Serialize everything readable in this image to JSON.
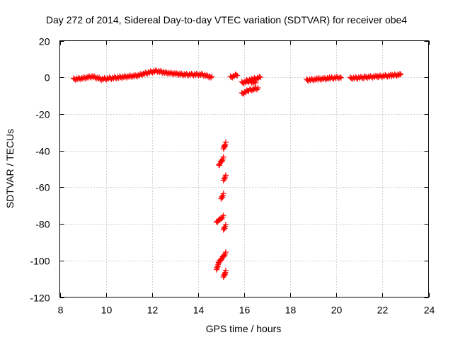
{
  "chart_data": {
    "type": "scatter",
    "title": "Day 272 of 2014, Sidereal Day-to-day VTEC variation (SDTVAR) for receiver obe4",
    "xlabel": "GPS time / hours",
    "ylabel": "SDTVAR / TECUs",
    "xlim": [
      8,
      24
    ],
    "ylim": [
      -120,
      20
    ],
    "xticks": [
      8,
      10,
      12,
      14,
      16,
      18,
      20,
      22,
      24
    ],
    "yticks": [
      20,
      0,
      -20,
      -40,
      -60,
      -80,
      -100,
      -120
    ],
    "grid": true,
    "series": [
      {
        "name": "SDTVAR",
        "color": "#ff0000",
        "segments": [
          [
            [
              8.6,
              -1
            ],
            [
              9.0,
              -0.5
            ],
            [
              9.4,
              0.5
            ],
            [
              9.8,
              -1
            ],
            [
              10.2,
              -0.5
            ],
            [
              10.6,
              0
            ],
            [
              11.0,
              0.5
            ],
            [
              11.4,
              1
            ],
            [
              11.8,
              2.5
            ],
            [
              12.2,
              3.5
            ],
            [
              12.6,
              2.5
            ],
            [
              13.0,
              2
            ],
            [
              13.4,
              1.5
            ],
            [
              13.8,
              1.5
            ],
            [
              14.2,
              1.5
            ],
            [
              14.6,
              0
            ]
          ],
          [
            [
              15.4,
              0
            ],
            [
              15.7,
              1.5
            ]
          ],
          [
            [
              16.1,
              -2
            ],
            [
              16.4,
              -1
            ],
            [
              16.7,
              0
            ]
          ],
          [
            [
              15.9,
              -3
            ],
            [
              16.2,
              -2
            ],
            [
              16.5,
              -3
            ]
          ],
          [
            [
              15.9,
              -9
            ],
            [
              16.2,
              -7
            ],
            [
              16.6,
              -6
            ]
          ],
          [
            [
              18.7,
              -1.5
            ],
            [
              19.2,
              -1
            ],
            [
              19.7,
              -0.5
            ],
            [
              20.2,
              0
            ]
          ],
          [
            [
              20.6,
              -0.5
            ],
            [
              21.2,
              0
            ],
            [
              21.8,
              0.5
            ],
            [
              22.4,
              1
            ],
            [
              22.8,
              1.5
            ]
          ],
          [
            [
              15.2,
              -36
            ],
            [
              15.1,
              -39
            ]
          ],
          [
            [
              15.1,
              -44
            ],
            [
              14.9,
              -48
            ]
          ],
          [
            [
              15.2,
              -54
            ],
            [
              15.1,
              -56
            ]
          ],
          [
            [
              15.1,
              -64
            ],
            [
              15.0,
              -66
            ]
          ],
          [
            [
              15.1,
              -76
            ],
            [
              14.8,
              -79
            ]
          ],
          [
            [
              15.2,
              -81
            ],
            [
              15.1,
              -83
            ]
          ],
          [
            [
              15.2,
              -96
            ],
            [
              14.9,
              -101
            ],
            [
              14.8,
              -105
            ]
          ],
          [
            [
              15.2,
              -106
            ],
            [
              15.1,
              -109
            ]
          ]
        ]
      }
    ]
  }
}
